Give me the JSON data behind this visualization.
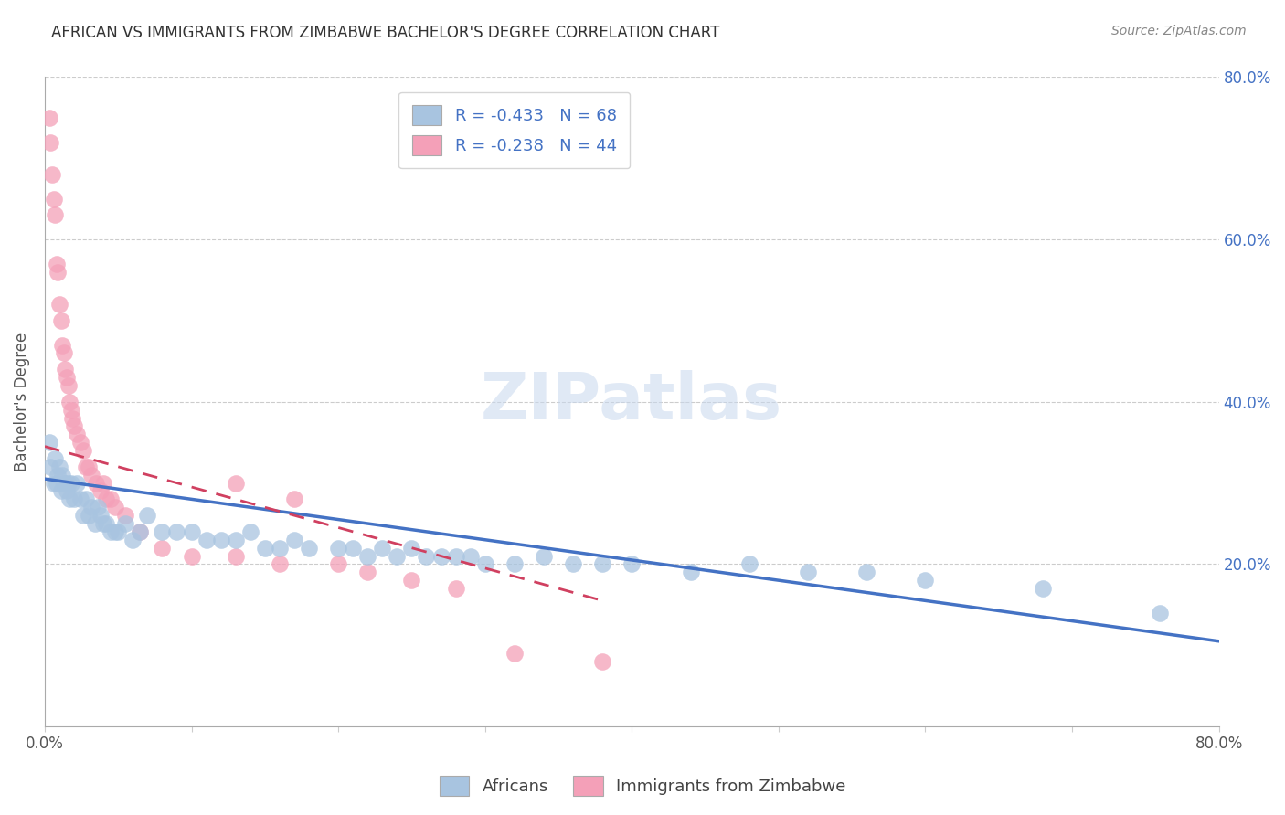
{
  "title": "AFRICAN VS IMMIGRANTS FROM ZIMBABWE BACHELOR'S DEGREE CORRELATION CHART",
  "source": "Source: ZipAtlas.com",
  "ylabel": "Bachelor's Degree",
  "blue_R": -0.433,
  "blue_N": 68,
  "pink_R": -0.238,
  "pink_N": 44,
  "blue_color": "#a8c4e0",
  "pink_color": "#f4a0b8",
  "blue_line_color": "#4472c4",
  "pink_line_color": "#d04060",
  "legend_text_color": "#4472c4",
  "xlim": [
    0.0,
    0.8
  ],
  "ylim": [
    0.0,
    0.8
  ],
  "right_yticks": [
    0.0,
    0.2,
    0.4,
    0.6,
    0.8
  ],
  "right_yticklabels": [
    "",
    "20.0%",
    "40.0%",
    "60.0%",
    "80.0%"
  ],
  "blue_x": [
    0.003,
    0.004,
    0.006,
    0.007,
    0.008,
    0.009,
    0.01,
    0.011,
    0.012,
    0.013,
    0.014,
    0.015,
    0.016,
    0.017,
    0.018,
    0.02,
    0.022,
    0.024,
    0.026,
    0.028,
    0.03,
    0.032,
    0.034,
    0.036,
    0.038,
    0.04,
    0.042,
    0.045,
    0.048,
    0.05,
    0.055,
    0.06,
    0.065,
    0.07,
    0.08,
    0.09,
    0.1,
    0.11,
    0.12,
    0.13,
    0.14,
    0.15,
    0.16,
    0.17,
    0.18,
    0.2,
    0.21,
    0.22,
    0.23,
    0.24,
    0.25,
    0.26,
    0.27,
    0.28,
    0.29,
    0.3,
    0.32,
    0.34,
    0.36,
    0.38,
    0.4,
    0.44,
    0.48,
    0.52,
    0.56,
    0.6,
    0.68,
    0.76
  ],
  "blue_y": [
    0.35,
    0.32,
    0.3,
    0.33,
    0.3,
    0.31,
    0.32,
    0.29,
    0.31,
    0.3,
    0.3,
    0.29,
    0.3,
    0.28,
    0.3,
    0.28,
    0.3,
    0.28,
    0.26,
    0.28,
    0.26,
    0.27,
    0.25,
    0.27,
    0.26,
    0.25,
    0.25,
    0.24,
    0.24,
    0.24,
    0.25,
    0.23,
    0.24,
    0.26,
    0.24,
    0.24,
    0.24,
    0.23,
    0.23,
    0.23,
    0.24,
    0.22,
    0.22,
    0.23,
    0.22,
    0.22,
    0.22,
    0.21,
    0.22,
    0.21,
    0.22,
    0.21,
    0.21,
    0.21,
    0.21,
    0.2,
    0.2,
    0.21,
    0.2,
    0.2,
    0.2,
    0.19,
    0.2,
    0.19,
    0.19,
    0.18,
    0.17,
    0.14
  ],
  "pink_x": [
    0.003,
    0.004,
    0.005,
    0.006,
    0.007,
    0.008,
    0.009,
    0.01,
    0.011,
    0.012,
    0.013,
    0.014,
    0.015,
    0.016,
    0.017,
    0.018,
    0.019,
    0.02,
    0.022,
    0.024,
    0.026,
    0.028,
    0.03,
    0.032,
    0.035,
    0.038,
    0.04,
    0.042,
    0.045,
    0.048,
    0.055,
    0.065,
    0.08,
    0.1,
    0.13,
    0.16,
    0.2,
    0.22,
    0.25,
    0.28,
    0.17,
    0.13,
    0.32,
    0.38
  ],
  "pink_y": [
    0.75,
    0.72,
    0.68,
    0.65,
    0.63,
    0.57,
    0.56,
    0.52,
    0.5,
    0.47,
    0.46,
    0.44,
    0.43,
    0.42,
    0.4,
    0.39,
    0.38,
    0.37,
    0.36,
    0.35,
    0.34,
    0.32,
    0.32,
    0.31,
    0.3,
    0.29,
    0.3,
    0.28,
    0.28,
    0.27,
    0.26,
    0.24,
    0.22,
    0.21,
    0.21,
    0.2,
    0.2,
    0.19,
    0.18,
    0.17,
    0.28,
    0.3,
    0.09,
    0.08
  ],
  "blue_line_x": [
    0.0,
    0.8
  ],
  "blue_line_y": [
    0.305,
    0.105
  ],
  "pink_line_x": [
    0.0,
    0.38
  ],
  "pink_line_y": [
    0.345,
    0.155
  ]
}
